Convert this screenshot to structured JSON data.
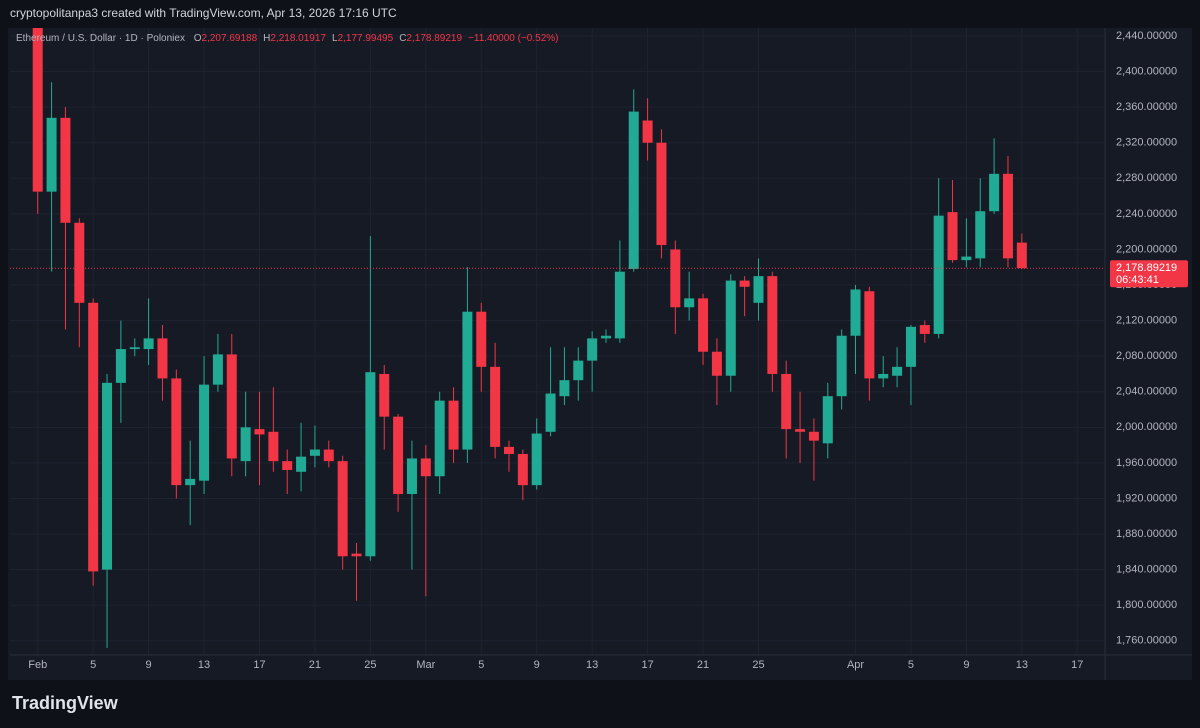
{
  "chart_data": {
    "type": "candlestick",
    "caption": "cryptopolitanpa3 created with TradingView.com, Apr 13, 2026 17:16 UTC",
    "title": "Ethereum / U.S. Dollar · 1D · Poloniex",
    "header": [
      {
        "key": "O",
        "value": "2,207.69188"
      },
      {
        "key": "H",
        "value": "2,218.01917"
      },
      {
        "key": "L",
        "value": "2,177.99495"
      },
      {
        "key": "C",
        "value": "2,178.89219"
      }
    ],
    "change": "−11.40000 (−0.52%)",
    "last_price_label": "2,178.89219",
    "countdown": "06:43:41",
    "brand": "TradingView",
    "up_color": "#22ab94",
    "down_color": "#f23645",
    "grid": true,
    "x": [
      "Feb 1",
      "Feb 2",
      "Feb 3",
      "Feb 4",
      "Feb 5",
      "Feb 6",
      "Feb 7",
      "Feb 8",
      "Feb 9",
      "Feb 10",
      "Feb 11",
      "Feb 12",
      "Feb 13",
      "Feb 14",
      "Feb 15",
      "Feb 16",
      "Feb 17",
      "Feb 18",
      "Feb 19",
      "Feb 20",
      "Feb 21",
      "Feb 22",
      "Feb 23",
      "Feb 24",
      "Feb 25",
      "Feb 26",
      "Feb 27",
      "Feb 28",
      "Mar 1",
      "Mar 2",
      "Mar 3",
      "Mar 4",
      "Mar 5",
      "Mar 6",
      "Mar 7",
      "Mar 8",
      "Mar 9",
      "Mar 10",
      "Mar 11",
      "Mar 12",
      "Mar 13",
      "Mar 14",
      "Mar 15",
      "Mar 16",
      "Mar 17",
      "Mar 18",
      "Mar 19",
      "Mar 20",
      "Mar 21",
      "Mar 22",
      "Mar 23",
      "Mar 24",
      "Mar 25",
      "Mar 26",
      "Mar 27",
      "Mar 28",
      "Mar 29",
      "Mar 30",
      "Mar 31",
      "Apr 1",
      "Apr 2",
      "Apr 3",
      "Apr 4",
      "Apr 5",
      "Apr 6",
      "Apr 7",
      "Apr 8",
      "Apr 9",
      "Apr 10",
      "Apr 11",
      "Apr 12",
      "Apr 13"
    ],
    "open": [
      2449,
      2265,
      2348,
      2230,
      2140,
      1840,
      2050,
      2088,
      2088,
      2100,
      2055,
      1935,
      1940,
      2048,
      2082,
      1962,
      1998,
      1995,
      1962,
      1950,
      1968,
      1975,
      1962,
      1858,
      1855,
      2060,
      2012,
      1925,
      1965,
      1945,
      2030,
      1975,
      2130,
      2068,
      1978,
      1970,
      1935,
      1995,
      2035,
      2053,
      2075,
      2100,
      2100,
      2178,
      2345,
      2320,
      2200,
      2135,
      2145,
      2085,
      2058,
      2165,
      2140,
      2170,
      2060,
      1998,
      1995,
      1982,
      2035,
      2103,
      2153,
      2055,
      2058,
      2068,
      2115,
      2105,
      2242,
      2188,
      2190,
      2243,
      2285,
      2207.69188
    ],
    "high": [
      2449,
      2388,
      2360,
      2235,
      2145,
      2060,
      2120,
      2100,
      2145,
      2115,
      2065,
      1985,
      2080,
      2105,
      2105,
      2040,
      2040,
      2045,
      1975,
      2005,
      2002,
      1985,
      1968,
      1870,
      2215,
      2070,
      2015,
      1985,
      1980,
      2040,
      2045,
      2180,
      2140,
      2095,
      1985,
      1975,
      2010,
      2090,
      2090,
      2090,
      2108,
      2110,
      2210,
      2380,
      2370,
      2335,
      2210,
      2175,
      2150,
      2100,
      2172,
      2170,
      2190,
      2175,
      2075,
      2040,
      2010,
      2050,
      2110,
      2160,
      2158,
      2080,
      2090,
      2115,
      2120,
      2280,
      2278,
      2235,
      2280,
      2325,
      2305,
      2218.01917
    ],
    "low": [
      2240,
      2175,
      2110,
      2090,
      1822,
      1752,
      2005,
      2080,
      2070,
      2030,
      1920,
      1890,
      1925,
      2040,
      1945,
      1945,
      1935,
      1950,
      1925,
      1928,
      1955,
      1955,
      1840,
      1805,
      1850,
      1975,
      1905,
      1840,
      1810,
      1925,
      1960,
      1960,
      2040,
      1965,
      1950,
      1918,
      1930,
      1990,
      2025,
      2030,
      2040,
      2095,
      2095,
      2175,
      2300,
      2190,
      2105,
      2120,
      2070,
      2025,
      2040,
      2125,
      2120,
      2040,
      1965,
      1960,
      1940,
      1965,
      2020,
      2060,
      2030,
      2045,
      2045,
      2025,
      2095,
      2100,
      2185,
      2180,
      2180,
      2240,
      2180,
      2177.99495
    ],
    "close": [
      2265,
      2348,
      2230,
      2140,
      1838,
      2050,
      2088,
      2090,
      2100,
      2055,
      1935,
      1942,
      2048,
      2082,
      1965,
      2000,
      1992,
      1962,
      1952,
      1967,
      1975,
      1962,
      1855,
      1855,
      2062,
      2012,
      1925,
      1965,
      1945,
      2030,
      1975,
      2130,
      2068,
      1978,
      1970,
      1935,
      1993,
      2038,
      2053,
      2075,
      2100,
      2103,
      2175,
      2355,
      2320,
      2205,
      2135,
      2145,
      2085,
      2058,
      2165,
      2158,
      2170,
      2060,
      1998,
      1995,
      1985,
      2035,
      2103,
      2155,
      2055,
      2060,
      2068,
      2113,
      2105,
      2238,
      2188,
      2192,
      2243,
      2285,
      2190,
      2178.89219
    ],
    "xlim": [
      "Jan 30",
      "Apr 19"
    ],
    "xticks": [
      {
        "value": "Feb 1",
        "label": "Feb"
      },
      {
        "value": "Feb 5",
        "label": "5"
      },
      {
        "value": "Feb 9",
        "label": "9"
      },
      {
        "value": "Feb 13",
        "label": "13"
      },
      {
        "value": "Feb 17",
        "label": "17"
      },
      {
        "value": "Feb 21",
        "label": "21"
      },
      {
        "value": "Feb 25",
        "label": "25"
      },
      {
        "value": "Mar 1",
        "label": "Mar"
      },
      {
        "value": "Mar 5",
        "label": "5"
      },
      {
        "value": "Mar 9",
        "label": "9"
      },
      {
        "value": "Mar 13",
        "label": "13"
      },
      {
        "value": "Mar 17",
        "label": "17"
      },
      {
        "value": "Mar 21",
        "label": "21"
      },
      {
        "value": "Mar 25",
        "label": "25"
      },
      {
        "value": "Apr 1",
        "label": "Apr"
      },
      {
        "value": "Apr 5",
        "label": "5"
      },
      {
        "value": "Apr 9",
        "label": "9"
      },
      {
        "value": "Apr 13",
        "label": "13"
      },
      {
        "value": "Apr 17",
        "label": "17"
      }
    ],
    "ylim": [
      1744,
      2449
    ],
    "yticks": [
      {
        "value": 1760,
        "label": "1,760.00000"
      },
      {
        "value": 1800,
        "label": "1,800.00000"
      },
      {
        "value": 1840,
        "label": "1,840.00000"
      },
      {
        "value": 1880,
        "label": "1,880.00000"
      },
      {
        "value": 1920,
        "label": "1,920.00000"
      },
      {
        "value": 1960,
        "label": "1,960.00000"
      },
      {
        "value": 2000,
        "label": "2,000.00000"
      },
      {
        "value": 2040,
        "label": "2,040.00000"
      },
      {
        "value": 2080,
        "label": "2,080.00000"
      },
      {
        "value": 2120,
        "label": "2,120.00000"
      },
      {
        "value": 2160,
        "label": "2,160.00000"
      },
      {
        "value": 2200,
        "label": "2,200.00000"
      },
      {
        "value": 2240,
        "label": "2,240.00000"
      },
      {
        "value": 2280,
        "label": "2,280.00000"
      },
      {
        "value": 2320,
        "label": "2,320.00000"
      },
      {
        "value": 2360,
        "label": "2,360.00000"
      },
      {
        "value": 2400,
        "label": "2,400.00000"
      },
      {
        "value": 2440,
        "label": "2,440.00000"
      }
    ]
  }
}
